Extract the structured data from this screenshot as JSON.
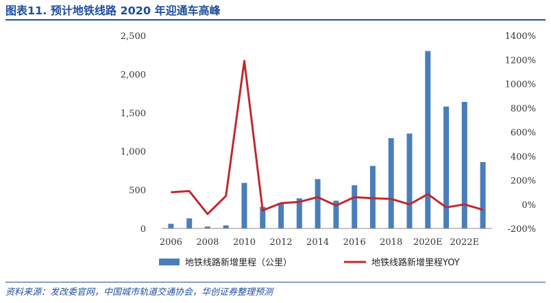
{
  "header": {
    "title": "图表11.  预计地铁线路 2020 年迎通车高峰"
  },
  "footer": {
    "source": "资料来源：发改委官网，中国城市轨道交通协会，华创证券整理预测"
  },
  "chart_data": {
    "type": "bar",
    "categories": [
      "2006",
      "2007",
      "2008",
      "2009",
      "2010",
      "2011",
      "2012",
      "2013",
      "2014",
      "2015",
      "2016",
      "2017",
      "2018",
      "2019",
      "2020E",
      "2021E",
      "2022E",
      "2023E"
    ],
    "x_tick_labels": [
      "2006",
      "2008",
      "2010",
      "2012",
      "2014",
      "2016",
      "2018",
      "2020E",
      "2022E"
    ],
    "series": [
      {
        "name": "地铁线路新增里程（公里）",
        "type": "bar",
        "axis": "left",
        "color": "#4a7ebb",
        "values": [
          60,
          130,
          25,
          40,
          590,
          280,
          330,
          390,
          640,
          360,
          560,
          810,
          1170,
          1230,
          2300,
          1580,
          1640,
          860
        ]
      },
      {
        "name": "地铁线路新增里程YOY",
        "type": "line",
        "axis": "right",
        "color": "#c0282e",
        "values": [
          100,
          110,
          -80,
          70,
          1190,
          -50,
          10,
          20,
          60,
          -10,
          60,
          50,
          45,
          0,
          85,
          -25,
          0,
          -45
        ]
      }
    ],
    "y_left": {
      "lim": [
        0,
        2500
      ],
      "ticks": [
        0,
        500,
        1000,
        1500,
        2000,
        2500
      ],
      "tick_labels": [
        "0",
        "500",
        "1,000",
        "1,500",
        "2,000",
        "2,500"
      ]
    },
    "y_right": {
      "lim": [
        -200,
        1400
      ],
      "ticks": [
        -200,
        0,
        200,
        400,
        600,
        800,
        1000,
        1200,
        1400
      ],
      "tick_labels": [
        "-200%",
        "0%",
        "200%",
        "400%",
        "600%",
        "800%",
        "1000%",
        "1200%",
        "1400%"
      ]
    },
    "grid": false,
    "legend_position": "bottom"
  }
}
